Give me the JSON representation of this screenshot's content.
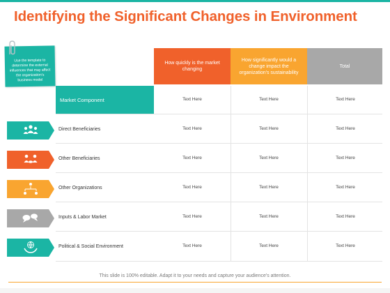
{
  "title": "Identifying the Significant Changes in Environment",
  "note": "Use the template to determine the external influences that may affect the organization's business model",
  "table": {
    "corner_label": "Market Component",
    "headers": [
      "How quickly is the market changing",
      "How significantly would a change impact the organization's sustainability",
      "Total"
    ],
    "rows": [
      {
        "label": "Direct Beneficiaries",
        "icon": "people-group-icon",
        "color": "#1bb5a4",
        "cells": [
          "Text Here",
          "Text Here",
          "Text Here"
        ]
      },
      {
        "label": "Other Beneficiaries",
        "icon": "handshake-people-icon",
        "color": "#f0612b",
        "cells": [
          "Text Here",
          "Text Here",
          "Text Here"
        ]
      },
      {
        "label": "Other Organizations",
        "icon": "org-chart-icon",
        "color": "#f9a530",
        "cells": [
          "Text Here",
          "Text Here",
          "Text Here"
        ]
      },
      {
        "label": "Inputs & Labor Market",
        "icon": "speech-bubbles-icon",
        "color": "#a8a8a8",
        "cells": [
          "Text Here",
          "Text Here",
          "Text Here"
        ]
      },
      {
        "label": "Political & Social Environment",
        "icon": "globe-hands-icon",
        "color": "#1bb5a4",
        "cells": [
          "Text Here",
          "Text Here",
          "Text Here"
        ]
      }
    ],
    "top_cells": [
      "Text Here",
      "Text Here",
      "Text Here"
    ]
  },
  "footer": "This slide is 100% editable. Adapt it to your needs and capture your audience's attention.",
  "colors": {
    "teal": "#1bb5a4",
    "orange": "#f0612b",
    "amber": "#f9a530",
    "gray": "#a8a8a8"
  }
}
